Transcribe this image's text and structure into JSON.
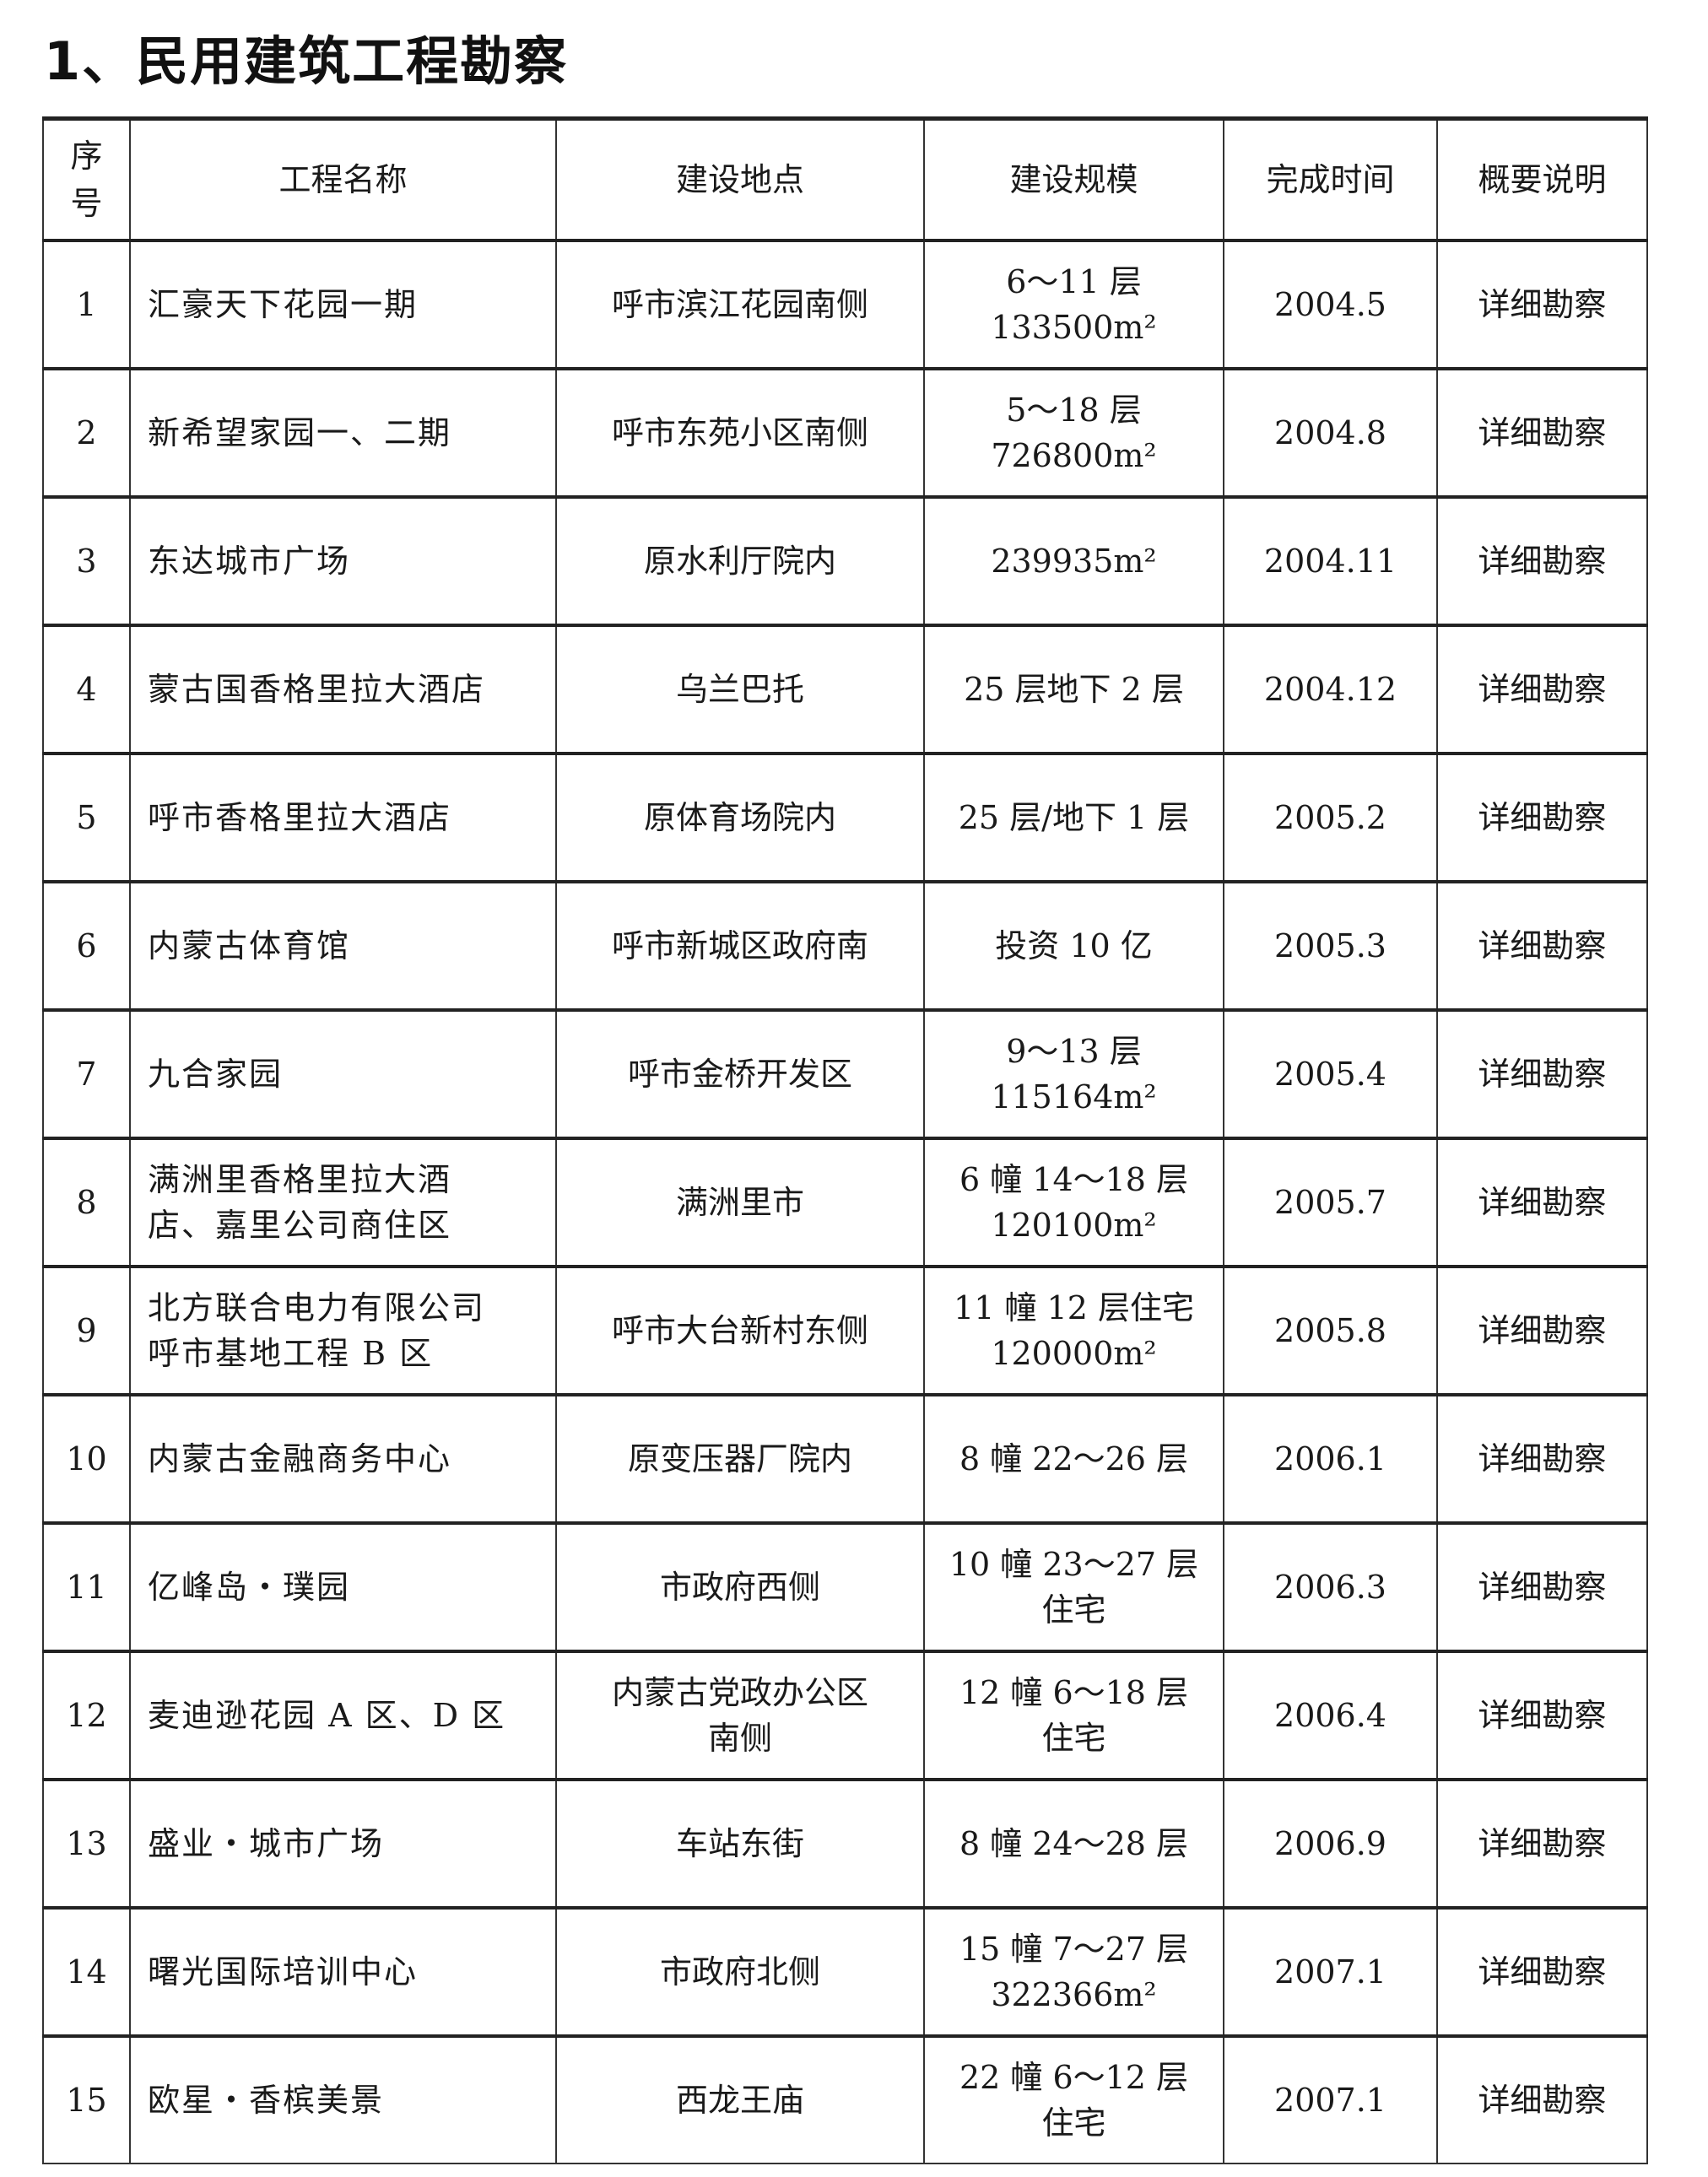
{
  "title": "1、民用建筑工程勘察",
  "table": {
    "headers": [
      "序\n号",
      "工程名称",
      "建设地点",
      "建设规模",
      "完成时间",
      "概要说明"
    ],
    "rows": [
      {
        "seq": "1",
        "name": [
          "汇豪天下花园一期"
        ],
        "location": [
          "呼市滨江花园南侧"
        ],
        "scale": [
          "6～11 层",
          "133500m²"
        ],
        "date": "2004.5",
        "desc": "详细勘察"
      },
      {
        "seq": "2",
        "name": [
          "新希望家园一、二期"
        ],
        "location": [
          "呼市东苑小区南侧"
        ],
        "scale": [
          "5～18 层",
          "726800m²"
        ],
        "date": "2004.8",
        "desc": "详细勘察"
      },
      {
        "seq": "3",
        "name": [
          "东达城市广场"
        ],
        "location": [
          "原水利厅院内"
        ],
        "scale": [
          "239935m²"
        ],
        "date": "2004.11",
        "desc": "详细勘察"
      },
      {
        "seq": "4",
        "name": [
          "蒙古国香格里拉大酒店"
        ],
        "location": [
          "乌兰巴托"
        ],
        "scale": [
          "25 层地下 2 层"
        ],
        "date": "2004.12",
        "desc": "详细勘察"
      },
      {
        "seq": "5",
        "name": [
          "呼市香格里拉大酒店"
        ],
        "location": [
          "原体育场院内"
        ],
        "scale": [
          "25 层/地下 1 层"
        ],
        "date": "2005.2",
        "desc": "详细勘察"
      },
      {
        "seq": "6",
        "name": [
          "内蒙古体育馆"
        ],
        "location": [
          "呼市新城区政府南"
        ],
        "scale": [
          "投资 10 亿"
        ],
        "date": "2005.3",
        "desc": "详细勘察"
      },
      {
        "seq": "7",
        "name": [
          "九合家园"
        ],
        "location": [
          "呼市金桥开发区"
        ],
        "scale": [
          "9～13 层",
          "115164m²"
        ],
        "date": "2005.4",
        "desc": "详细勘察"
      },
      {
        "seq": "8",
        "name": [
          "满洲里香格里拉大酒",
          "店、嘉里公司商住区"
        ],
        "location": [
          "满洲里市"
        ],
        "scale": [
          "6 幢 14～18 层",
          "120100m²"
        ],
        "date": "2005.7",
        "desc": "详细勘察"
      },
      {
        "seq": "9",
        "name": [
          "北方联合电力有限公司",
          "呼市基地工程 B 区"
        ],
        "location": [
          "呼市大台新村东侧"
        ],
        "scale": [
          "11 幢 12 层住宅",
          "120000m²"
        ],
        "date": "2005.8",
        "desc": "详细勘察"
      },
      {
        "seq": "10",
        "name": [
          "内蒙古金融商务中心"
        ],
        "location": [
          "原变压器厂院内"
        ],
        "scale": [
          "8 幢 22～26 层"
        ],
        "date": "2006.1",
        "desc": "详细勘察"
      },
      {
        "seq": "11",
        "name": [
          "亿峰岛・璞园"
        ],
        "location": [
          "市政府西侧"
        ],
        "scale": [
          "10 幢 23～27 层",
          "住宅"
        ],
        "date": "2006.3",
        "desc": "详细勘察"
      },
      {
        "seq": "12",
        "name": [
          "麦迪逊花园 A 区、D 区"
        ],
        "location": [
          "内蒙古党政办公区",
          "南侧"
        ],
        "scale": [
          "12 幢 6～18 层",
          "住宅"
        ],
        "date": "2006.4",
        "desc": "详细勘察"
      },
      {
        "seq": "13",
        "name": [
          "盛业・城市广场"
        ],
        "location": [
          "车站东街"
        ],
        "scale": [
          "8 幢 24～28 层"
        ],
        "date": "2006.9",
        "desc": "详细勘察"
      },
      {
        "seq": "14",
        "name": [
          "曙光国际培训中心"
        ],
        "location": [
          "市政府北侧"
        ],
        "scale": [
          "15 幢 7～27 层",
          "322366m²"
        ],
        "date": "2007.1",
        "desc": "详细勘察"
      },
      {
        "seq": "15",
        "name": [
          "欧星・香槟美景"
        ],
        "location": [
          "西龙王庙"
        ],
        "scale": [
          "22 幢 6～12 层",
          "住宅"
        ],
        "date": "2007.1",
        "desc": "详细勘察"
      }
    ]
  }
}
